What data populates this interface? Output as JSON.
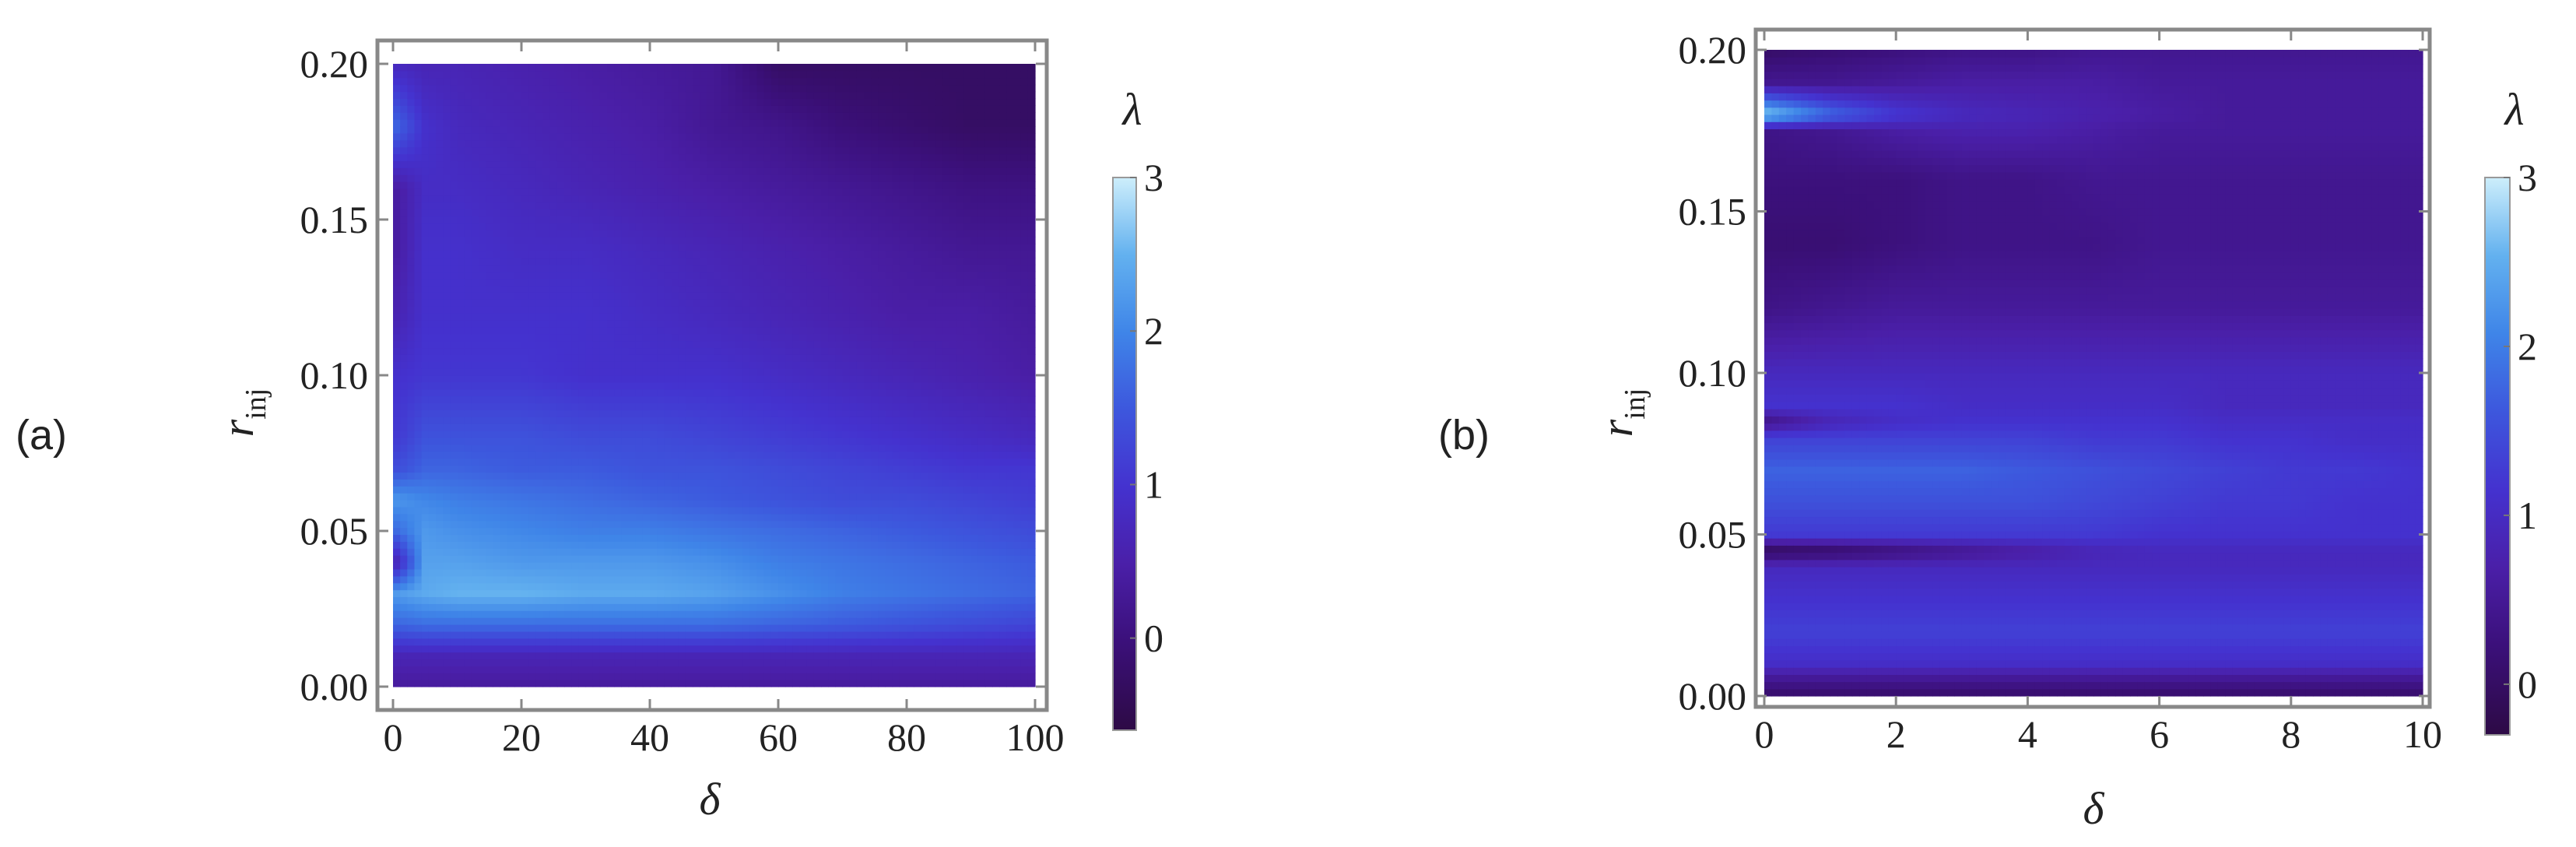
{
  "colors": {
    "scale": [
      "#2d0a45",
      "#3b107a",
      "#4a1fa8",
      "#4432cf",
      "#3d57dd",
      "#3f85e8",
      "#63b1ef",
      "#a6daf6"
    ],
    "frame": "#888888"
  },
  "chart_data": [
    {
      "type": "heatmap",
      "panel": "(a)",
      "xlabel": "δ",
      "ylabel_main": "r",
      "ylabel_sub": "inj",
      "colorbar_label": "λ",
      "xlim": [
        0,
        100
      ],
      "ylim": [
        0,
        0.2
      ],
      "clim": [
        -0.6,
        3
      ],
      "x_ticks": [
        "0",
        "20",
        "40",
        "60",
        "80",
        "100"
      ],
      "y_ticks": [
        "0.00",
        "0.05",
        "0.10",
        "0.15",
        "0.20"
      ],
      "colorbar_ticks": [
        "0",
        "1",
        "2",
        "3"
      ],
      "x": [
        0,
        5,
        10,
        20,
        30,
        40,
        50,
        60,
        70,
        80,
        90,
        100
      ],
      "y": [
        0.0,
        0.01,
        0.02,
        0.03,
        0.04,
        0.05,
        0.06,
        0.07,
        0.08,
        0.1,
        0.12,
        0.14,
        0.16,
        0.18,
        0.2
      ],
      "z": [
        [
          0.3,
          0.3,
          0.3,
          0.3,
          0.3,
          0.3,
          0.3,
          0.3,
          0.3,
          0.3,
          0.3,
          0.3
        ],
        [
          0.6,
          0.6,
          0.6,
          0.6,
          0.6,
          0.6,
          0.6,
          0.6,
          0.6,
          0.6,
          0.6,
          0.6
        ],
        [
          1.6,
          1.7,
          1.7,
          1.7,
          1.7,
          1.7,
          1.7,
          1.6,
          1.5,
          1.4,
          1.3,
          1.2
        ],
        [
          2.2,
          2.4,
          2.5,
          2.5,
          2.4,
          2.4,
          2.3,
          2.1,
          1.9,
          1.8,
          1.7,
          1.6
        ],
        [
          0.4,
          2.3,
          2.3,
          2.2,
          2.2,
          2.2,
          2.1,
          1.9,
          1.8,
          1.7,
          1.6,
          1.5
        ],
        [
          1.6,
          2.2,
          2.1,
          2.0,
          1.9,
          1.9,
          1.8,
          1.7,
          1.6,
          1.5,
          1.4,
          1.3
        ],
        [
          2.2,
          2.0,
          1.9,
          1.8,
          1.7,
          1.6,
          1.5,
          1.4,
          1.3,
          1.3,
          1.2,
          1.1
        ],
        [
          1.3,
          1.6,
          1.6,
          1.5,
          1.5,
          1.4,
          1.4,
          1.3,
          1.2,
          1.1,
          1.0,
          1.0
        ],
        [
          1.0,
          1.4,
          1.4,
          1.4,
          1.3,
          1.3,
          1.2,
          1.1,
          1.0,
          0.9,
          0.8,
          0.7
        ],
        [
          0.9,
          1.0,
          1.0,
          1.0,
          0.9,
          0.9,
          0.9,
          0.8,
          0.7,
          0.6,
          0.5,
          0.4
        ],
        [
          0.5,
          0.9,
          0.9,
          0.9,
          0.9,
          0.8,
          0.7,
          0.6,
          0.5,
          0.4,
          0.4,
          0.3
        ],
        [
          0.3,
          0.9,
          0.9,
          0.8,
          0.8,
          0.7,
          0.6,
          0.5,
          0.4,
          0.3,
          0.2,
          0.2
        ],
        [
          0.3,
          0.8,
          0.8,
          0.7,
          0.6,
          0.5,
          0.4,
          0.3,
          0.2,
          0.1,
          0.0,
          0.0
        ],
        [
          1.7,
          0.9,
          0.7,
          0.6,
          0.5,
          0.4,
          0.2,
          0.1,
          -0.1,
          -0.2,
          -0.3,
          -0.3
        ],
        [
          0.7,
          0.6,
          0.6,
          0.5,
          0.4,
          0.3,
          0.2,
          -0.3,
          -0.3,
          -0.3,
          -0.3,
          -0.3
        ]
      ]
    },
    {
      "type": "heatmap",
      "panel": "(b)",
      "xlabel": "δ",
      "ylabel_main": "r",
      "ylabel_sub": "inj",
      "colorbar_label": "λ",
      "xlim": [
        0,
        10
      ],
      "ylim": [
        0,
        0.2
      ],
      "clim": [
        -0.3,
        3
      ],
      "x_ticks": [
        "0",
        "2",
        "4",
        "6",
        "8",
        "10"
      ],
      "y_ticks": [
        "0.00",
        "0.05",
        "0.10",
        "0.15",
        "0.20"
      ],
      "colorbar_ticks": [
        "0",
        "1",
        "2",
        "3"
      ],
      "x": [
        0,
        1,
        2,
        3,
        4,
        5,
        6,
        7,
        8,
        9,
        10
      ],
      "y": [
        0.0,
        0.005,
        0.01,
        0.02,
        0.03,
        0.04,
        0.045,
        0.05,
        0.06,
        0.07,
        0.08,
        0.085,
        0.09,
        0.1,
        0.12,
        0.14,
        0.16,
        0.175,
        0.18,
        0.19,
        0.2
      ],
      "z": [
        [
          0.0,
          0.0,
          0.0,
          0.0,
          0.0,
          0.0,
          0.0,
          0.0,
          0.0,
          0.0,
          0.0
        ],
        [
          0.4,
          0.4,
          0.4,
          0.4,
          0.4,
          0.4,
          0.4,
          0.4,
          0.4,
          0.4,
          0.4
        ],
        [
          1.0,
          1.0,
          1.0,
          1.0,
          1.0,
          1.0,
          1.0,
          1.0,
          1.0,
          1.0,
          1.0
        ],
        [
          1.3,
          1.3,
          1.3,
          1.3,
          1.3,
          1.3,
          1.3,
          1.3,
          1.3,
          1.3,
          1.3
        ],
        [
          1.1,
          1.1,
          1.1,
          1.1,
          1.1,
          1.1,
          1.1,
          1.1,
          1.1,
          1.1,
          1.1
        ],
        [
          0.9,
          0.9,
          0.9,
          0.9,
          0.9,
          0.9,
          0.9,
          0.9,
          0.9,
          0.9,
          0.9
        ],
        [
          -0.1,
          0.0,
          0.2,
          0.4,
          0.6,
          0.8,
          0.9,
          0.9,
          0.9,
          0.9,
          0.9
        ],
        [
          1.2,
          1.2,
          1.2,
          1.2,
          1.2,
          1.2,
          1.1,
          1.1,
          1.1,
          1.1,
          1.1
        ],
        [
          1.5,
          1.5,
          1.5,
          1.5,
          1.5,
          1.4,
          1.3,
          1.2,
          1.2,
          1.1,
          1.1
        ],
        [
          1.7,
          1.7,
          1.7,
          1.7,
          1.6,
          1.5,
          1.4,
          1.3,
          1.2,
          1.2,
          1.1
        ],
        [
          1.3,
          1.3,
          1.3,
          1.3,
          1.3,
          1.2,
          1.2,
          1.1,
          1.1,
          1.0,
          1.0
        ],
        [
          0.3,
          0.8,
          1.0,
          1.1,
          1.1,
          1.1,
          1.1,
          1.0,
          1.0,
          1.0,
          1.0
        ],
        [
          1.1,
          1.1,
          1.1,
          1.0,
          1.0,
          1.0,
          1.0,
          0.9,
          0.9,
          0.9,
          0.9
        ],
        [
          0.9,
          0.9,
          0.9,
          0.9,
          0.9,
          0.9,
          0.9,
          0.9,
          0.9,
          0.9,
          0.9
        ],
        [
          0.3,
          0.4,
          0.5,
          0.5,
          0.5,
          0.5,
          0.5,
          0.5,
          0.5,
          0.5,
          0.5
        ],
        [
          0.1,
          0.1,
          0.2,
          0.3,
          0.3,
          0.3,
          0.4,
          0.4,
          0.4,
          0.4,
          0.4
        ],
        [
          0.2,
          0.2,
          0.2,
          0.3,
          0.3,
          0.4,
          0.4,
          0.4,
          0.4,
          0.4,
          0.4
        ],
        [
          0.3,
          0.4,
          0.6,
          0.7,
          0.7,
          0.6,
          0.5,
          0.5,
          0.5,
          0.5,
          0.5
        ],
        [
          2.8,
          1.8,
          1.2,
          0.9,
          0.8,
          0.7,
          0.6,
          0.5,
          0.5,
          0.5,
          0.5
        ],
        [
          0.4,
          0.4,
          0.5,
          0.6,
          0.6,
          0.6,
          0.5,
          0.5,
          0.5,
          0.5,
          0.5
        ],
        [
          0.0,
          0.1,
          0.2,
          0.3,
          0.3,
          0.4,
          0.4,
          0.4,
          0.4,
          0.4,
          0.4
        ]
      ]
    }
  ]
}
